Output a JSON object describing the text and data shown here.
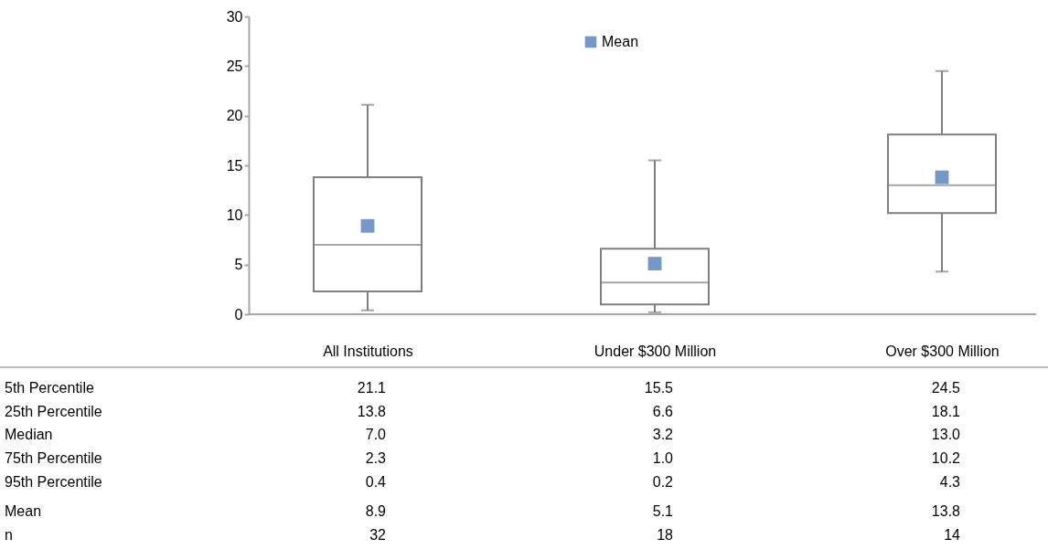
{
  "chart_data": {
    "type": "box",
    "categories": [
      "All Institutions",
      "Under $300 Million",
      "Over $300 Million"
    ],
    "color": "#7f7f7f",
    "boxes": [
      {
        "low": 0.4,
        "q1": 2.3,
        "median": 7.0,
        "q3": 13.8,
        "high": 21.1
      },
      {
        "low": 0.2,
        "q1": 1.0,
        "median": 3.2,
        "q3": 6.6,
        "high": 15.5
      },
      {
        "low": 4.3,
        "q1": 10.2,
        "median": 13.0,
        "q3": 18.1,
        "high": 24.5
      }
    ],
    "series": [
      {
        "name": "Mean",
        "type": "scatter",
        "marker": "square",
        "color": "#7698c9",
        "x": [
          "All Institutions",
          "Under $300 Million",
          "Over $300 Million"
        ],
        "values": [
          8.9,
          5.1,
          13.8
        ]
      }
    ],
    "ylim": [
      0,
      30
    ],
    "yticks": [
      0,
      5,
      10,
      15,
      20,
      25,
      30
    ],
    "grid": false,
    "legend": "top",
    "data_labels": true,
    "annotations": [
      "5th Percentile",
      "21.1",
      "15.5",
      "24.5",
      "25th Percentile",
      "13.8",
      "6.6",
      "18.1",
      "Median",
      "7.0",
      "3.2",
      "13.0",
      "75th Percentile",
      "2.3",
      "1.0",
      "10.2",
      "95th Percentile",
      "0.4",
      "0.2",
      "4.3",
      "Mean",
      "n",
      "32",
      "18",
      "14"
    ]
  }
}
